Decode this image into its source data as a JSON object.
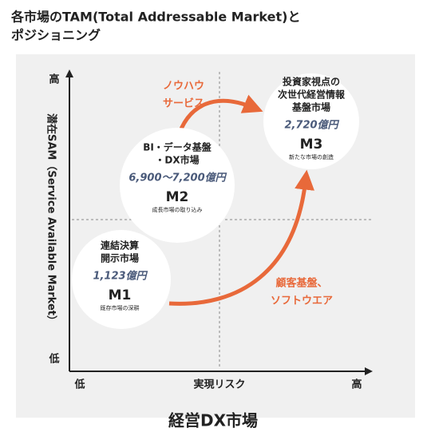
{
  "header": {
    "title": [
      "各市場のTAM(Total Addressable Market)と",
      "ポジショニング"
    ]
  },
  "axes": {
    "y_label": "潜在SAM（Service Available Market）",
    "y_high": "高",
    "y_low": "低",
    "x_label": "実現リスク",
    "x_low": "低",
    "x_high": "高",
    "caption": "経営DX市場"
  },
  "markets": [
    {
      "name": [
        "連結決算",
        "開示市場"
      ],
      "size": "1,123億円",
      "code": "M1",
      "note": "既存市場の深耕"
    },
    {
      "name": [
        "BI・データ基盤",
        "・DX市場"
      ],
      "size": "6,900〜7,200億円",
      "code": "M2",
      "note": "成長市場の取り込み"
    },
    {
      "name": [
        "投資家視点の",
        "次世代経営情報",
        "基盤市場"
      ],
      "size": "2,720億円",
      "code": "M3",
      "note": "新たな市場の創造"
    }
  ],
  "arrows": [
    {
      "label": [
        "ノウハウ",
        "サービス"
      ]
    },
    {
      "label": [
        "顧客基盤、",
        "ソフトウエア"
      ]
    }
  ]
}
